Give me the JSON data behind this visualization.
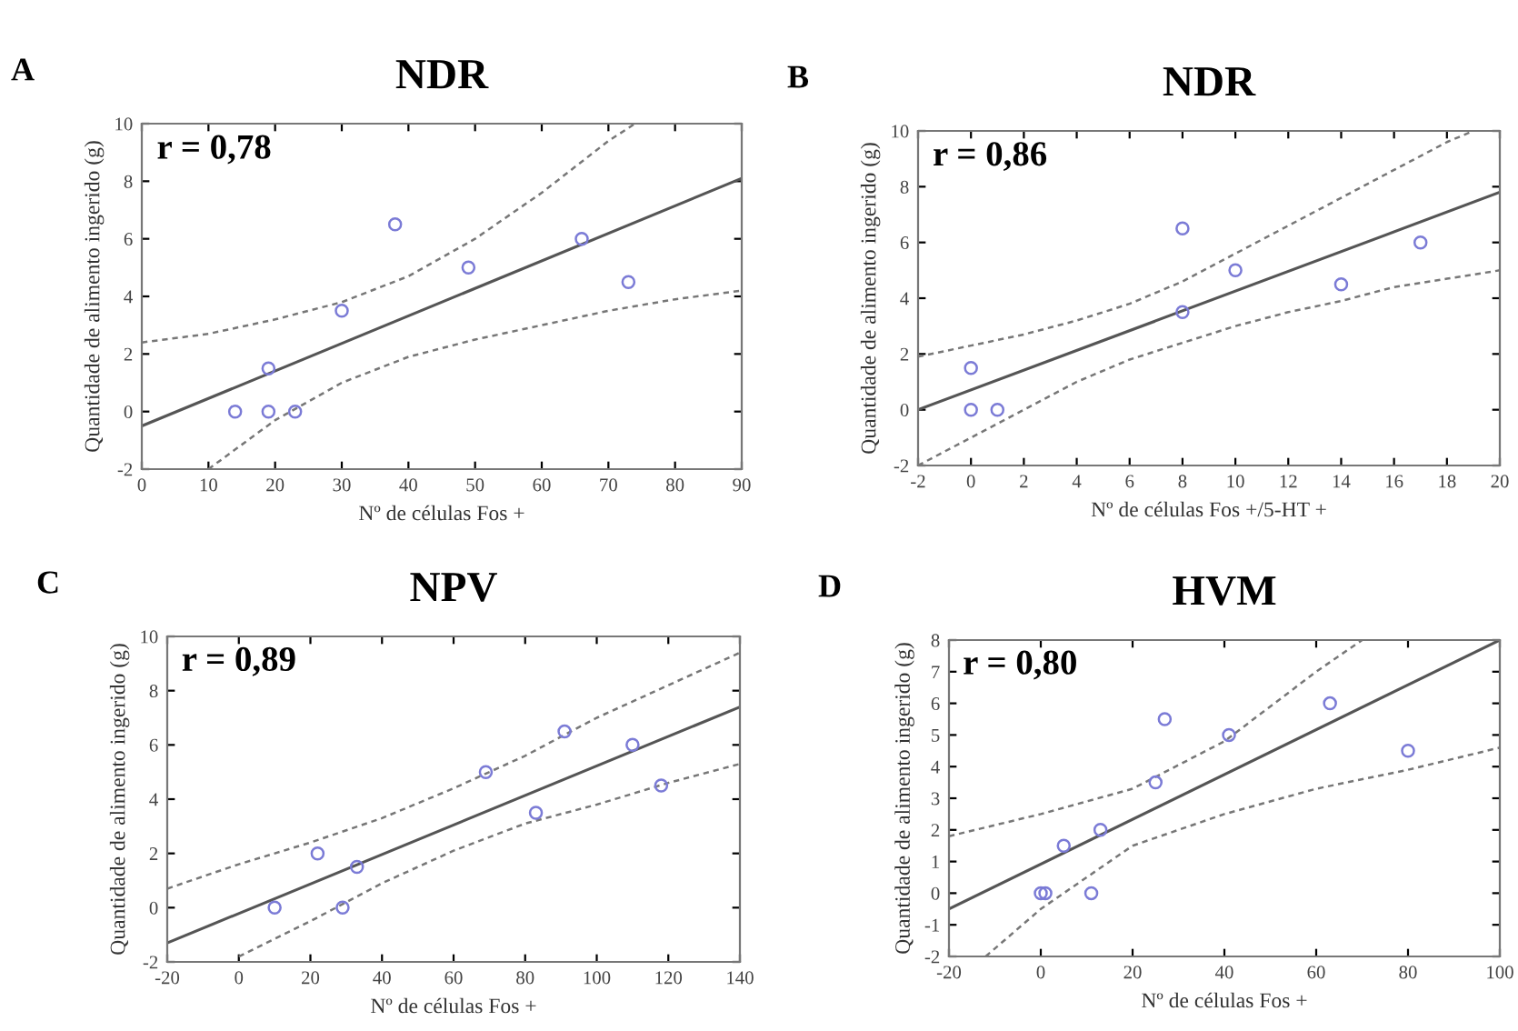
{
  "chart_data": [
    {
      "type": "scatter",
      "title": "NDR",
      "xlabel": "Nº de células Fos +",
      "ylabel": "Quantidade de alimento ingerido (g)",
      "annotations": [
        "A",
        "r = 0,78"
      ],
      "xlim": [
        0,
        90
      ],
      "xticks": [
        0,
        10,
        20,
        30,
        40,
        50,
        60,
        70,
        80,
        90
      ],
      "ylim": [
        -2,
        10
      ],
      "yticks": [
        -2,
        0,
        2,
        4,
        6,
        8,
        10
      ],
      "grid": false,
      "series": [
        {
          "marker": "circle",
          "color": "#7b7bd6",
          "x": [
            14,
            19,
            19,
            23,
            30,
            38,
            49,
            66,
            73
          ],
          "values": [
            0,
            0,
            1.5,
            0,
            3.5,
            6.5,
            5,
            6,
            4.5
          ]
        },
        {
          "type": "line",
          "color": "#555555",
          "line_style": "solid",
          "x": [
            0,
            90
          ],
          "values": [
            -0.5,
            8.1
          ]
        },
        {
          "type": "line",
          "color": "#777777",
          "line_style": "dashed",
          "x": [
            0,
            10,
            20,
            30,
            40,
            50,
            60,
            70,
            74
          ],
          "values": [
            2.4,
            2.7,
            3.2,
            3.8,
            4.7,
            6.0,
            7.6,
            9.4,
            10
          ]
        },
        {
          "type": "line",
          "color": "#777777",
          "line_style": "dashed",
          "x": [
            10,
            20,
            30,
            40,
            50,
            60,
            70,
            80,
            90
          ],
          "values": [
            -2,
            -0.3,
            1.0,
            1.9,
            2.5,
            3.0,
            3.5,
            3.9,
            4.2
          ]
        }
      ]
    },
    {
      "type": "scatter",
      "title": "NDR",
      "xlabel": "Nº de células Fos +/5-HT +",
      "ylabel": "Quantidade de alimento ingerido (g)",
      "annotations": [
        "B",
        "r = 0,86"
      ],
      "xlim": [
        -2,
        20
      ],
      "xticks": [
        -2,
        0,
        2,
        4,
        6,
        8,
        10,
        12,
        14,
        16,
        18,
        20
      ],
      "ylim": [
        -2,
        10
      ],
      "yticks": [
        -2,
        0,
        2,
        4,
        6,
        8,
        10
      ],
      "grid": false,
      "series": [
        {
          "marker": "circle",
          "color": "#7b7bd6",
          "x": [
            0,
            0,
            1,
            8,
            8,
            10,
            14,
            17
          ],
          "values": [
            0,
            1.5,
            0,
            6.5,
            3.5,
            5,
            4.5,
            6
          ]
        },
        {
          "type": "line",
          "color": "#555555",
          "line_style": "solid",
          "x": [
            -2,
            20
          ],
          "values": [
            0,
            7.8
          ]
        },
        {
          "type": "line",
          "color": "#777777",
          "line_style": "dashed",
          "x": [
            -2,
            0,
            2,
            4,
            6,
            8,
            10,
            12,
            14,
            16,
            18,
            19
          ],
          "values": [
            1.9,
            2.3,
            2.7,
            3.2,
            3.8,
            4.6,
            5.6,
            6.6,
            7.6,
            8.6,
            9.6,
            10
          ]
        },
        {
          "type": "line",
          "color": "#777777",
          "line_style": "dashed",
          "x": [
            -2,
            0,
            2,
            4,
            6,
            8,
            10,
            12,
            14,
            16,
            18,
            20
          ],
          "values": [
            -2,
            -1.0,
            0,
            1.0,
            1.8,
            2.4,
            3.0,
            3.5,
            3.9,
            4.4,
            4.7,
            5.0
          ]
        }
      ]
    },
    {
      "type": "scatter",
      "title": "NPV",
      "xlabel": "Nº de células Fos +",
      "ylabel": "Quantidade de alimento ingerido (g)",
      "annotations": [
        "C",
        "r = 0,89"
      ],
      "xlim": [
        -20,
        140
      ],
      "xticks": [
        -20,
        0,
        20,
        40,
        60,
        80,
        100,
        120,
        140
      ],
      "ylim": [
        -2,
        10
      ],
      "yticks": [
        -2,
        0,
        2,
        4,
        6,
        8,
        10
      ],
      "grid": false,
      "series": [
        {
          "marker": "circle",
          "color": "#7b7bd6",
          "x": [
            10,
            22,
            29,
            33,
            69,
            83,
            91,
            110,
            118
          ],
          "values": [
            0,
            2,
            0,
            1.5,
            5,
            3.5,
            6.5,
            6,
            4.5
          ]
        },
        {
          "type": "line",
          "color": "#555555",
          "line_style": "solid",
          "x": [
            -20,
            140
          ],
          "values": [
            -1.3,
            7.4
          ]
        },
        {
          "type": "line",
          "color": "#777777",
          "line_style": "dashed",
          "x": [
            -20,
            0,
            20,
            40,
            60,
            80,
            100,
            120,
            140
          ],
          "values": [
            0.7,
            1.6,
            2.4,
            3.3,
            4.4,
            5.6,
            7.0,
            8.2,
            9.4
          ]
        },
        {
          "type": "line",
          "color": "#777777",
          "line_style": "dashed",
          "x": [
            0,
            20,
            40,
            60,
            80,
            100,
            120,
            140
          ],
          "values": [
            -1.8,
            -0.5,
            0.9,
            2.1,
            3.1,
            3.8,
            4.6,
            5.3
          ]
        }
      ]
    },
    {
      "type": "scatter",
      "title": "HVM",
      "xlabel": "Nº de células Fos +",
      "ylabel": "Quantidade de alimento ingerido (g)",
      "annotations": [
        "D",
        "r = 0,80"
      ],
      "xlim": [
        -20,
        100
      ],
      "xticks": [
        -20,
        0,
        20,
        40,
        60,
        80,
        100
      ],
      "ylim": [
        -2,
        8
      ],
      "yticks": [
        -2,
        -1,
        0,
        1,
        2,
        3,
        4,
        5,
        6,
        7,
        8
      ],
      "grid": false,
      "series": [
        {
          "marker": "circle",
          "color": "#7b7bd6",
          "x": [
            0,
            1,
            5,
            11,
            13,
            25,
            27,
            41,
            63,
            80
          ],
          "values": [
            0,
            0,
            1.5,
            0,
            2,
            3.5,
            5.5,
            5,
            6,
            4.5
          ]
        },
        {
          "type": "line",
          "color": "#555555",
          "line_style": "solid",
          "x": [
            -20,
            100
          ],
          "values": [
            -0.5,
            8
          ]
        },
        {
          "type": "line",
          "color": "#777777",
          "line_style": "dashed",
          "x": [
            -20,
            0,
            20,
            40,
            60,
            70
          ],
          "values": [
            1.8,
            2.5,
            3.3,
            4.8,
            7.0,
            8
          ]
        },
        {
          "type": "line",
          "color": "#777777",
          "line_style": "dashed",
          "x": [
            -12,
            0,
            20,
            40,
            60,
            80,
            100
          ],
          "values": [
            -2,
            -0.5,
            1.5,
            2.5,
            3.3,
            3.9,
            4.6
          ]
        }
      ]
    }
  ]
}
